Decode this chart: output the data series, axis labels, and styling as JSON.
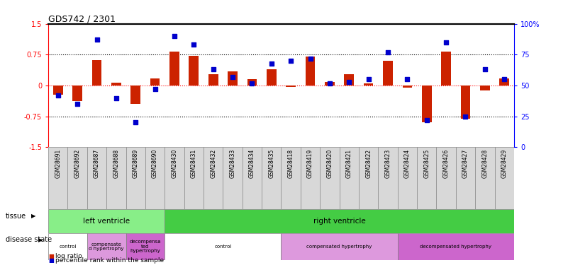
{
  "title": "GDS742 / 2301",
  "samples": [
    "GSM28691",
    "GSM28692",
    "GSM28687",
    "GSM28688",
    "GSM28689",
    "GSM28690",
    "GSM28430",
    "GSM28431",
    "GSM28432",
    "GSM28433",
    "GSM28434",
    "GSM28435",
    "GSM28418",
    "GSM28419",
    "GSM28420",
    "GSM28421",
    "GSM28422",
    "GSM28423",
    "GSM28424",
    "GSM28425",
    "GSM28426",
    "GSM28427",
    "GSM28428",
    "GSM28429"
  ],
  "log_ratio": [
    -0.22,
    -0.38,
    0.62,
    0.07,
    -0.45,
    0.18,
    0.83,
    0.72,
    0.27,
    0.35,
    0.15,
    0.4,
    -0.03,
    0.7,
    0.08,
    0.28,
    0.05,
    0.6,
    -0.05,
    -0.9,
    0.82,
    -0.8,
    -0.12,
    0.17
  ],
  "percentile": [
    0.42,
    0.35,
    0.87,
    0.4,
    0.2,
    0.47,
    0.9,
    0.83,
    0.63,
    0.57,
    0.52,
    0.68,
    0.7,
    0.72,
    0.52,
    0.53,
    0.55,
    0.77,
    0.55,
    0.22,
    0.85,
    0.25,
    0.63,
    0.55
  ],
  "ylim": [
    -1.5,
    1.5
  ],
  "yticks_left": [
    -1.5,
    -0.75,
    0,
    0.75,
    1.5
  ],
  "ytick_left_labels": [
    "-1.5",
    "-0.75",
    "0",
    "0.75",
    "1.5"
  ],
  "yticks_right_vals": [
    0,
    25,
    50,
    75,
    100
  ],
  "ytick_right_labels": [
    "0",
    "25",
    "50",
    "75",
    "100%"
  ],
  "bar_color": "#cc2200",
  "dot_color": "#0000cc",
  "tissue_groups": [
    {
      "label": "left ventricle",
      "start": 0,
      "end": 6,
      "color": "#88ee88"
    },
    {
      "label": "right ventricle",
      "start": 6,
      "end": 24,
      "color": "#44cc44"
    }
  ],
  "disease_groups": [
    {
      "label": "control",
      "start": 0,
      "end": 2,
      "color": "#ffffff"
    },
    {
      "label": "compensate\nd hypertrophy",
      "start": 2,
      "end": 4,
      "color": "#dd99dd"
    },
    {
      "label": "decompensa\nted\nhypertrophy",
      "start": 4,
      "end": 6,
      "color": "#cc66cc"
    },
    {
      "label": "control",
      "start": 6,
      "end": 12,
      "color": "#ffffff"
    },
    {
      "label": "compensated hypertrophy",
      "start": 12,
      "end": 18,
      "color": "#dd99dd"
    },
    {
      "label": "decompensated hypertrophy",
      "start": 18,
      "end": 24,
      "color": "#cc66cc"
    }
  ],
  "bg_color": "#f0f0f0",
  "sample_bg_color": "#d8d8d8"
}
